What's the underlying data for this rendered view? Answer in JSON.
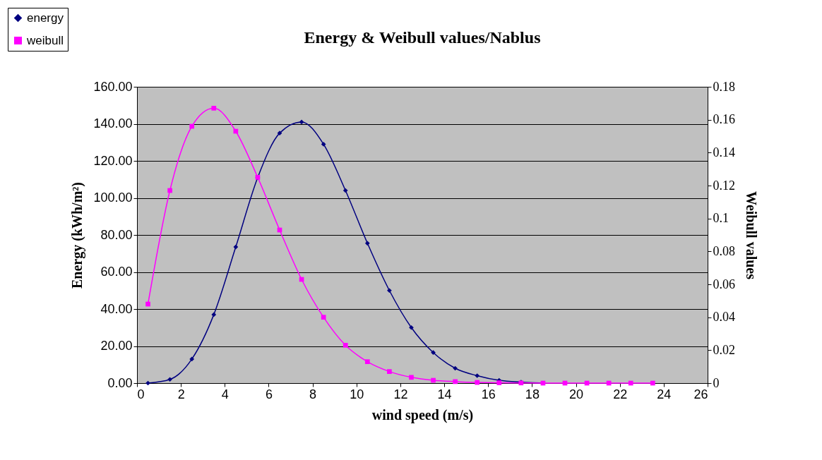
{
  "chart_data": {
    "type": "line",
    "title": "Energy & Weibull values/Nablus",
    "xlabel": "wind speed (m/s)",
    "ylabel": "Energy (kWh/m²)",
    "y2label": "Weibull values",
    "x": [
      0.5,
      1.5,
      2.5,
      3.5,
      4.5,
      5.5,
      6.5,
      7.5,
      8.5,
      9.5,
      10.5,
      11.5,
      12.5,
      13.5,
      14.5,
      15.5,
      16.5,
      17.5,
      18.5,
      19.5,
      20.5,
      21.5,
      22.5,
      23.5
    ],
    "series": [
      {
        "name": "energy",
        "color": "#000080",
        "marker": "diamond",
        "values": [
          0,
          2,
          13,
          37,
          73.5,
          111,
          135,
          141,
          129,
          104,
          75.5,
          50,
          30,
          16.5,
          8,
          4,
          1.5,
          0.5,
          0,
          null,
          null,
          null,
          null,
          null
        ]
      },
      {
        "name": "weibull",
        "color": "#ff00ff",
        "marker": "square",
        "axis": "y2",
        "values": [
          0.048,
          0.117,
          0.156,
          0.167,
          0.153,
          0.125,
          0.093,
          0.063,
          0.04,
          0.023,
          0.013,
          0.007,
          0.0035,
          0.0017,
          0.0009,
          0.0004,
          0.0002,
          0.0001,
          0,
          0,
          0,
          0,
          0,
          0
        ]
      }
    ],
    "xlim": [
      0,
      26
    ],
    "xticks": [
      0,
      2,
      4,
      6,
      8,
      10,
      12,
      14,
      16,
      18,
      20,
      22,
      24,
      26
    ],
    "ylim": [
      0,
      160
    ],
    "yticks": [
      {
        "value": 0,
        "label": "0.00"
      },
      {
        "value": 20,
        "label": "20.00"
      },
      {
        "value": 40,
        "label": "40.00"
      },
      {
        "value": 60,
        "label": "60.00"
      },
      {
        "value": 80,
        "label": "80.00"
      },
      {
        "value": 100,
        "label": "100.00"
      },
      {
        "value": 120,
        "label": "120.00"
      },
      {
        "value": 140,
        "label": "140.00"
      },
      {
        "value": 160,
        "label": "160.00"
      }
    ],
    "y2lim": [
      0,
      0.18
    ],
    "y2ticks": [
      0,
      0.02,
      0.04,
      0.06,
      0.08,
      0.1,
      0.12,
      0.14,
      0.16,
      0.18
    ],
    "grid": "y",
    "legend": "top left",
    "line_style": "solid"
  }
}
